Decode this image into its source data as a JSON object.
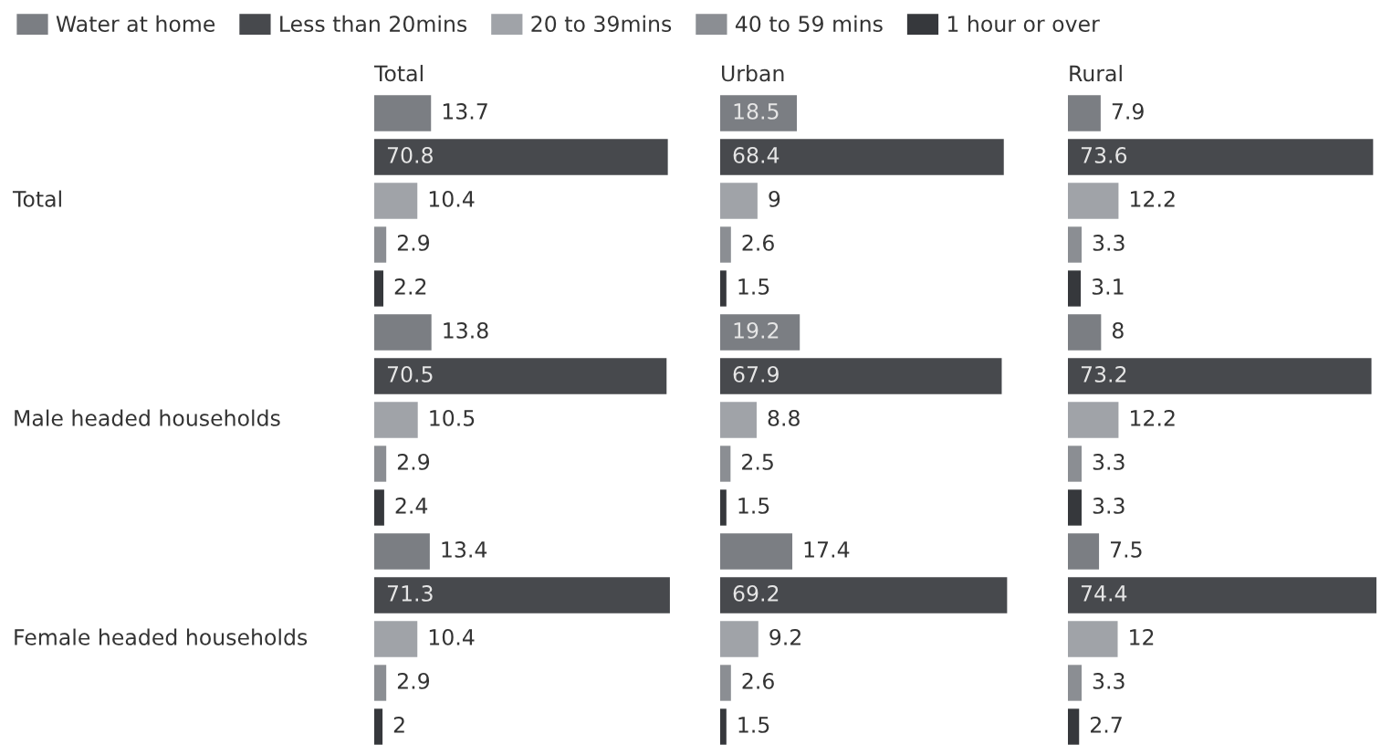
{
  "chart_data": [
    {
      "type": "bar",
      "orientation": "horizontal",
      "title": "Total",
      "categories": [
        "Total",
        "Male headed households",
        "Female headed households"
      ],
      "tick_labels": "y",
      "data_labels": true,
      "legend": "top",
      "series": [
        {
          "name": "Water at home",
          "color": "#7b7e83",
          "values": [
            13.7,
            13.8,
            13.4
          ]
        },
        {
          "name": "Less than 20mins",
          "color": "#47494d",
          "values": [
            70.8,
            70.5,
            71.3
          ]
        },
        {
          "name": "20 to 39mins",
          "color": "#a0a3a8",
          "values": [
            10.4,
            10.5,
            10.4
          ]
        },
        {
          "name": "40 to 59 mins",
          "color": "#8b8e93",
          "values": [
            2.9,
            2.9,
            2.9
          ]
        },
        {
          "name": "1 hour or over",
          "color": "#36383c",
          "values": [
            2.2,
            2.4,
            2
          ]
        }
      ]
    },
    {
      "type": "bar",
      "orientation": "horizontal",
      "title": "Urban",
      "categories": [
        "Total",
        "Male headed households",
        "Female headed households"
      ],
      "tick_labels": false,
      "data_labels": true,
      "series": [
        {
          "name": "Water at home",
          "color": "#7b7e83",
          "values": [
            18.5,
            19.2,
            17.4
          ]
        },
        {
          "name": "Less than 20mins",
          "color": "#47494d",
          "values": [
            68.4,
            67.9,
            69.2
          ]
        },
        {
          "name": "20 to 39mins",
          "color": "#a0a3a8",
          "values": [
            9,
            8.8,
            9.2
          ]
        },
        {
          "name": "40 to 59 mins",
          "color": "#8b8e93",
          "values": [
            2.6,
            2.5,
            2.6
          ]
        },
        {
          "name": "1 hour or over",
          "color": "#36383c",
          "values": [
            1.5,
            1.5,
            1.5
          ]
        }
      ]
    },
    {
      "type": "bar",
      "orientation": "horizontal",
      "title": "Rural",
      "categories": [
        "Total",
        "Male headed households",
        "Female headed households"
      ],
      "tick_labels": false,
      "data_labels": true,
      "series": [
        {
          "name": "Water at home",
          "color": "#7b7e83",
          "values": [
            7.9,
            8,
            7.5
          ]
        },
        {
          "name": "Less than 20mins",
          "color": "#47494d",
          "values": [
            73.6,
            73.2,
            74.4
          ]
        },
        {
          "name": "20 to 39mins",
          "color": "#a0a3a8",
          "values": [
            12.2,
            12.2,
            12
          ]
        },
        {
          "name": "40 to 59 mins",
          "color": "#8b8e93",
          "values": [
            3.3,
            3.3,
            3.3
          ]
        },
        {
          "name": "1 hour or over",
          "color": "#36383c",
          "values": [
            3.1,
            3.3,
            2.7
          ]
        }
      ]
    }
  ]
}
